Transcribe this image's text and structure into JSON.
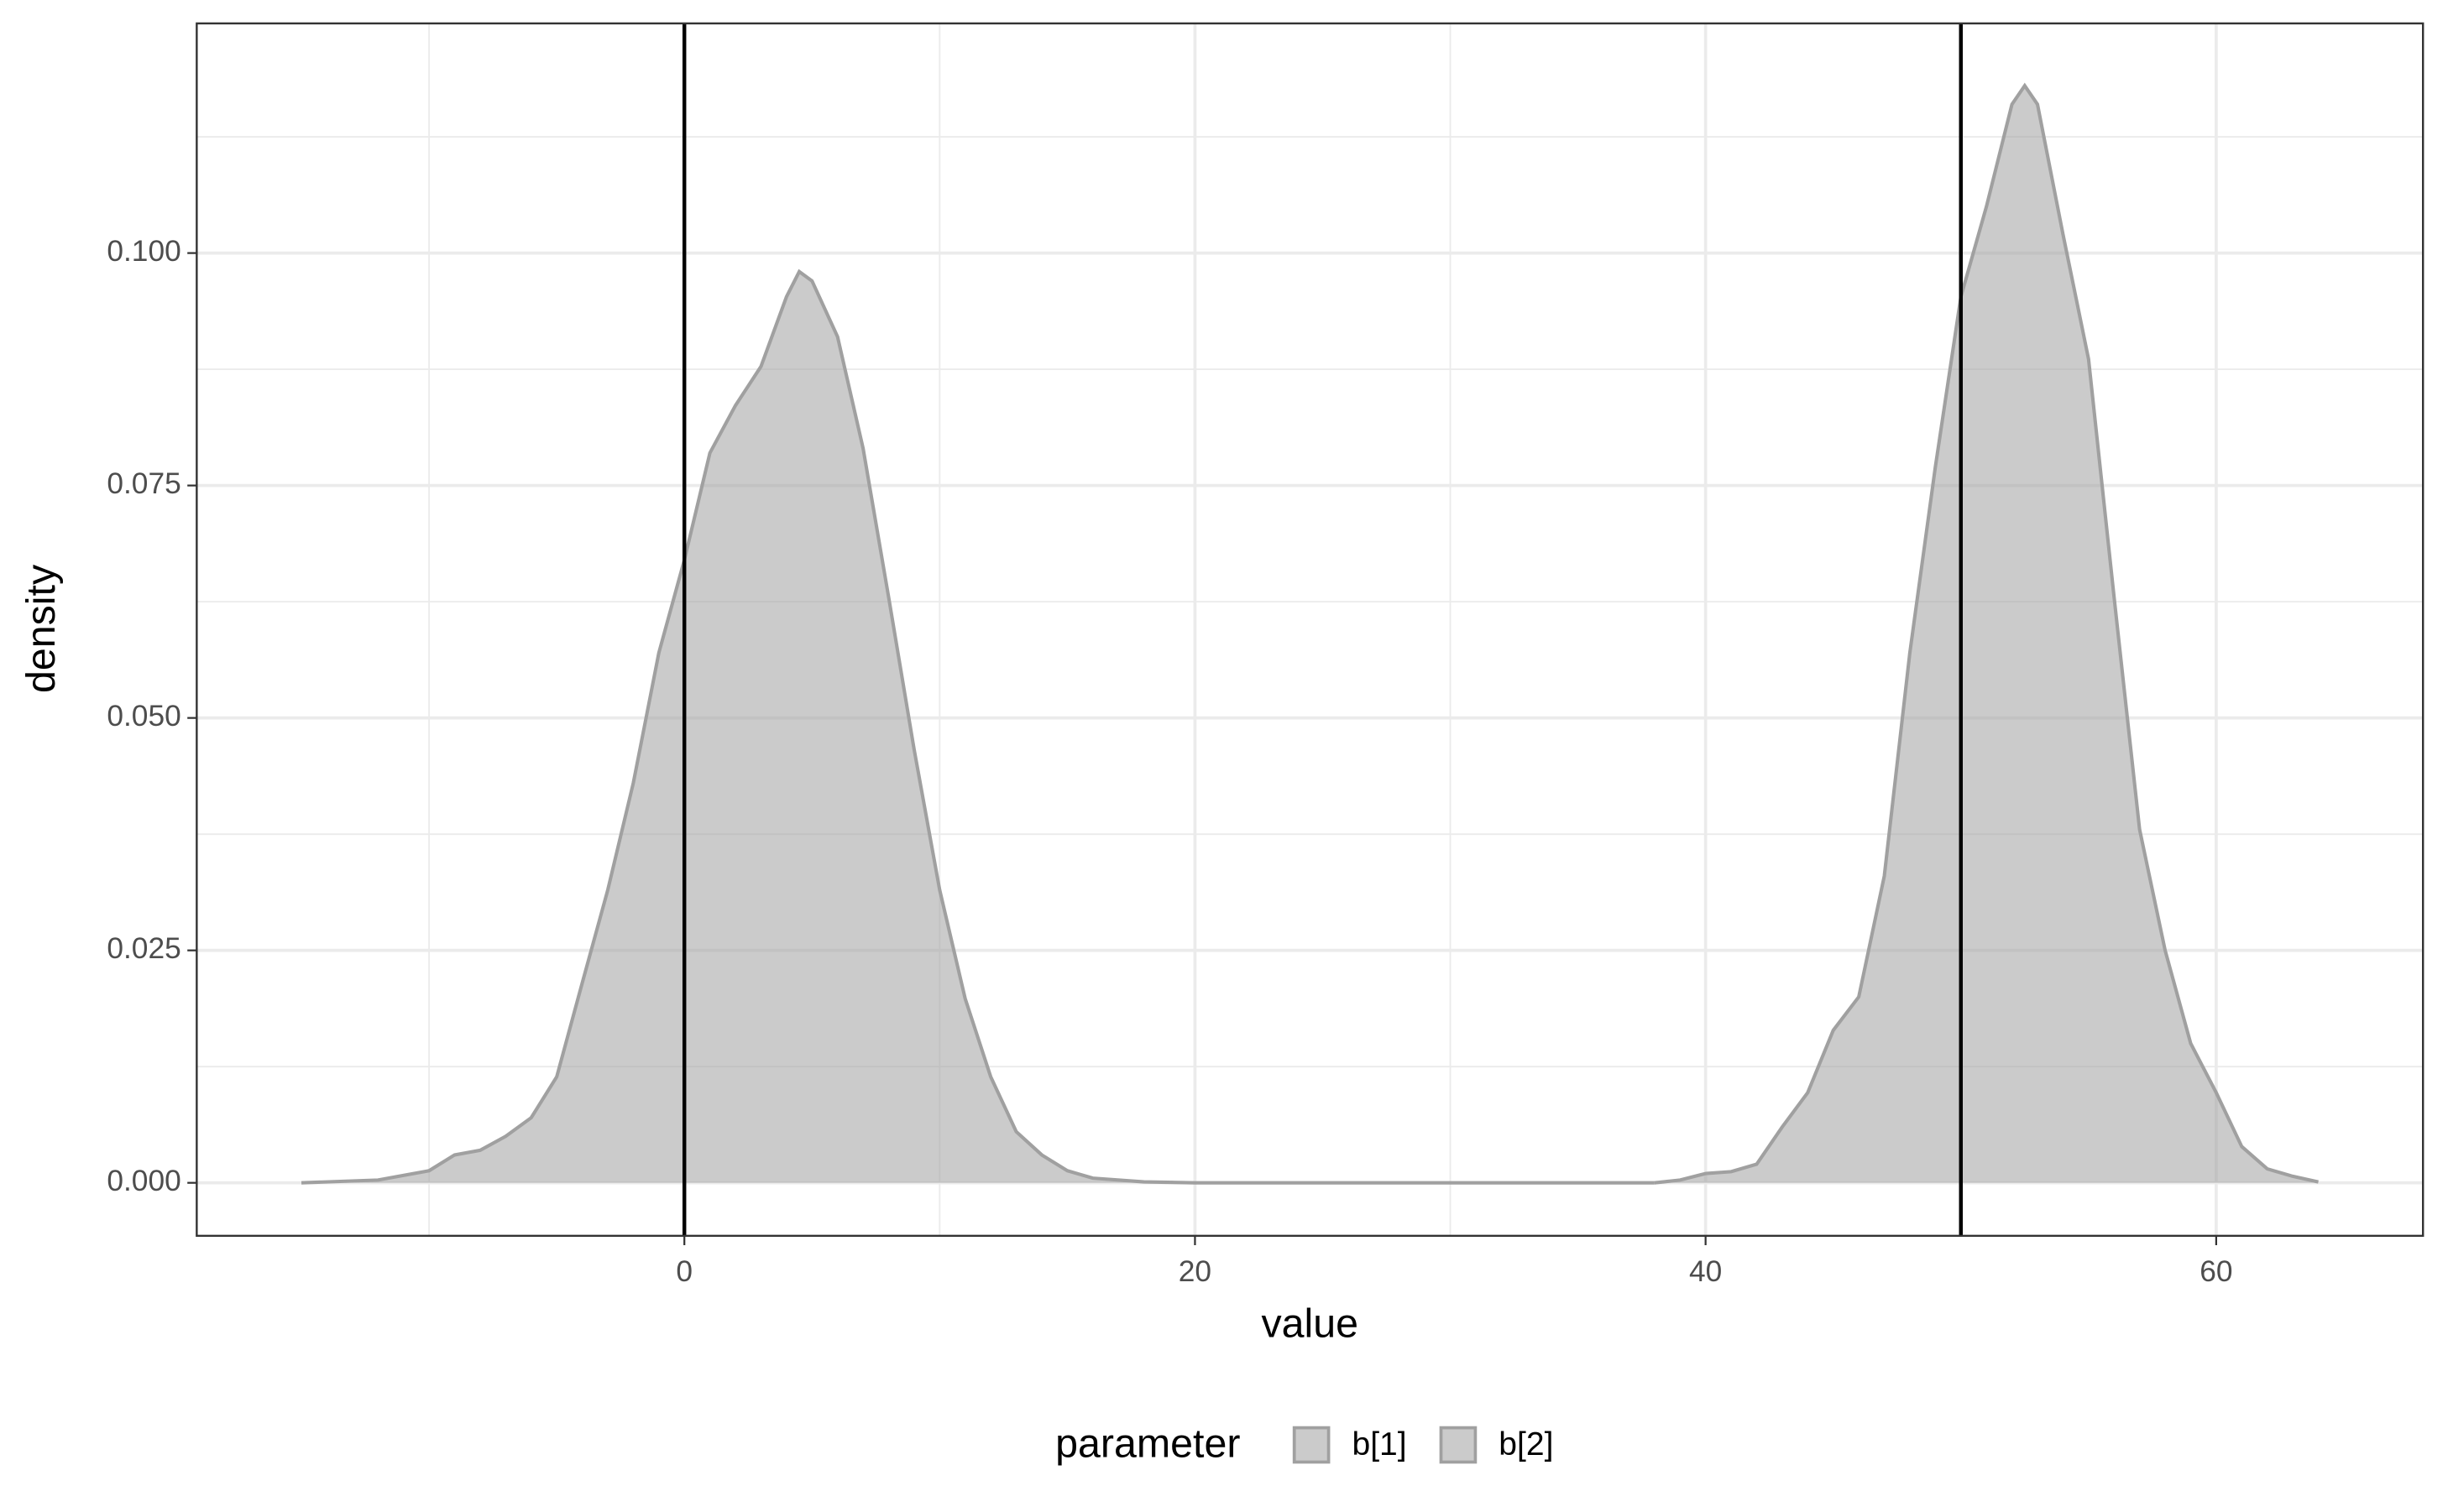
{
  "chart_data": {
    "type": "density",
    "x_label": "value",
    "y_label": "density",
    "legend_title": "parameter",
    "legend_position": "bottom",
    "series": [
      {
        "name": "b[1]",
        "color": "#a0a0a0",
        "x": [
          -15,
          -12,
          -10,
          -9,
          -8,
          -7,
          -6,
          -5,
          -4,
          -3,
          -2,
          -1,
          0,
          1,
          2,
          3,
          4,
          4.5,
          5,
          6,
          7,
          8,
          9,
          10,
          11,
          12,
          13,
          14,
          15,
          16,
          18,
          20,
          25,
          30,
          35,
          38
        ],
        "values": [
          0,
          0.0003,
          0.0013,
          0.003,
          0.0035,
          0.005,
          0.007,
          0.0114,
          0.0215,
          0.0315,
          0.043,
          0.057,
          0.067,
          0.0785,
          0.0836,
          0.0878,
          0.0953,
          0.098,
          0.097,
          0.091,
          0.079,
          0.063,
          0.0466,
          0.0315,
          0.0198,
          0.0114,
          0.0055,
          0.003,
          0.0013,
          0.0005,
          0.0001,
          0,
          0,
          0,
          0,
          0
        ]
      },
      {
        "name": "b[2]",
        "color": "#a0a0a0",
        "x": [
          38,
          39,
          40,
          41,
          42,
          43,
          44,
          45,
          46,
          47,
          48,
          49,
          50,
          51,
          52,
          52.5,
          53,
          54,
          55,
          56,
          57,
          58,
          59,
          60,
          61,
          62,
          63,
          64
        ],
        "values": [
          0,
          0.0003,
          0.001,
          0.0012,
          0.002,
          0.006,
          0.0097,
          0.0164,
          0.02,
          0.033,
          0.057,
          0.077,
          0.0953,
          0.105,
          0.116,
          0.118,
          0.116,
          0.102,
          0.0886,
          0.063,
          0.038,
          0.025,
          0.015,
          0.0097,
          0.0039,
          0.0015,
          0.0007,
          0.0001
        ]
      }
    ],
    "vlines": [
      0,
      50
    ],
    "vline_color": "#000000",
    "xlim": [
      -19.1,
      68.1
    ],
    "xticks": [
      0,
      20,
      40,
      60
    ],
    "minor_xticks": [
      -10,
      10,
      30,
      50
    ],
    "ylim": [
      -0.0057,
      0.1247
    ],
    "yticks": [
      {
        "value": 0,
        "label": "0.000"
      },
      {
        "value": 0.025,
        "label": "0.025"
      },
      {
        "value": 0.05,
        "label": "0.050"
      },
      {
        "value": 0.075,
        "label": "0.075"
      },
      {
        "value": 0.1,
        "label": "0.100"
      }
    ],
    "minor_yticks": [
      0.0125,
      0.0375,
      0.0625,
      0.0875,
      0.1125
    ],
    "grid": true
  }
}
